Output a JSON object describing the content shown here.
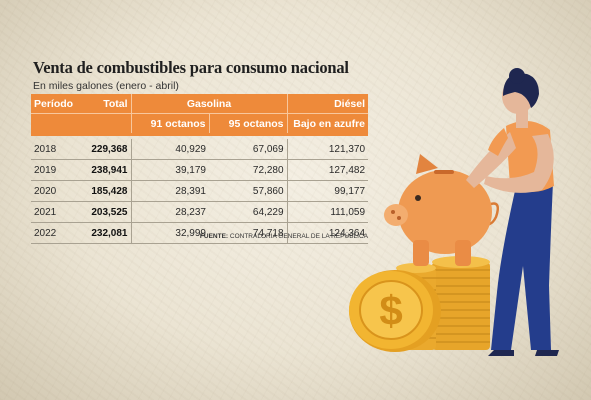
{
  "title": "Venta de combustibles para consumo nacional",
  "subtitle": "En miles galones (enero - abril)",
  "headers": {
    "period": "Período",
    "total": "Total",
    "gasoline": "Gasolina",
    "diesel": "Diésel",
    "oct91": "91 octanos",
    "oct95": "95 octanos",
    "low_sulfur": "Bajo en azufre"
  },
  "rows": [
    {
      "period": "2018",
      "total": "229,368",
      "oct91": "40,929",
      "oct95": "67,069",
      "diesel": "121,370"
    },
    {
      "period": "2019",
      "total": "238,941",
      "oct91": "39,179",
      "oct95": "72,280",
      "diesel": "127,482"
    },
    {
      "period": "2020",
      "total": "185,428",
      "oct91": "28,391",
      "oct95": "57,860",
      "diesel": "99,177"
    },
    {
      "period": "2021",
      "total": "203,525",
      "oct91": "28,237",
      "oct95": "64,229",
      "diesel": "111,059"
    },
    {
      "period": "2022",
      "total": "232,081",
      "oct91": "32,999",
      "oct95": "74,718",
      "diesel": "124,364"
    }
  ],
  "source": {
    "label": "FUENTE:",
    "text": "CONTRALORIA GENERAL DE LA REPÚBLICA"
  },
  "colors": {
    "header_orange": "#ee8a3a",
    "coin_gold": "#f2b531",
    "piggy_orange": "#ef9a52",
    "shirt_orange": "#f29a52",
    "pants_blue": "#243d8c",
    "hair_navy": "#1f2750"
  },
  "chart_data": {
    "type": "table",
    "title": "Venta de combustibles para consumo nacional",
    "subtitle": "En miles galones (enero - abril)",
    "columns": [
      "Período",
      "Total",
      "Gasolina 91 octanos",
      "Gasolina 95 octanos",
      "Diésel Bajo en azufre"
    ],
    "rows": [
      [
        2018,
        229368,
        40929,
        67069,
        121370
      ],
      [
        2019,
        238941,
        39179,
        72280,
        127482
      ],
      [
        2020,
        185428,
        28391,
        57860,
        99177
      ],
      [
        2021,
        203525,
        28237,
        64229,
        111059
      ],
      [
        2022,
        232081,
        32999,
        74718,
        124364
      ]
    ]
  }
}
